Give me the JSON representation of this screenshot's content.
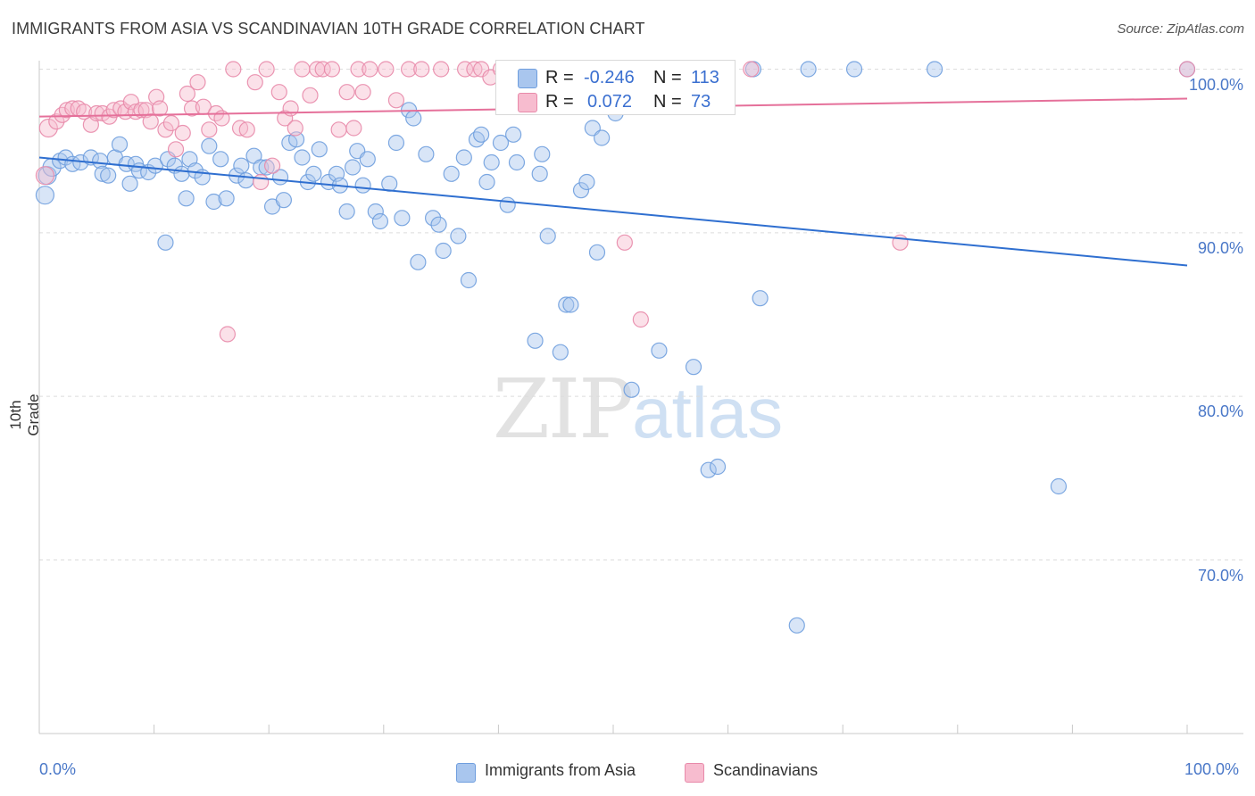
{
  "title": "IMMIGRANTS FROM ASIA VS SCANDINAVIAN 10TH GRADE CORRELATION CHART",
  "source": "Source: ZipAtlas.com",
  "watermark": {
    "part1": "ZIP",
    "part2": "atlas"
  },
  "legend": {
    "r_label": "R =",
    "n_label": "N =",
    "rows": [
      {
        "name": "Immigrants from Asia",
        "r": "-0.246",
        "n": "113",
        "color": "#a9c6ee",
        "stroke": "#6f9ede"
      },
      {
        "name": "Scandinavians",
        "r": "0.072",
        "n": "73",
        "color": "#f7bccf",
        "stroke": "#e88aaa"
      }
    ]
  },
  "chart_data": {
    "type": "scatter",
    "title": "IMMIGRANTS FROM ASIA VS SCANDINAVIAN 10TH GRADE CORRELATION CHART",
    "xlabel": "",
    "ylabel": "10th Grade",
    "xlim": [
      0,
      100
    ],
    "ylim": [
      59.5,
      101.5
    ],
    "x_tick_labels": [
      "0.0%",
      "100.0%"
    ],
    "y_ticks": [
      70,
      80,
      90,
      100
    ],
    "y_tick_labels": [
      "70.0%",
      "80.0%",
      "90.0%",
      "100.0%"
    ],
    "grid": "horizontal dashed",
    "legend_position": "top-center",
    "series": [
      {
        "name": "Immigrants from Asia",
        "color": "#6f9ede",
        "fill": "#a9c6ee",
        "trendline": {
          "x": [
            0,
            100
          ],
          "y": [
            94.6,
            88.0
          ]
        },
        "points": [
          [
            0.5,
            92.3
          ],
          [
            0.7,
            93.5
          ],
          [
            1.1,
            94.0
          ],
          [
            1.8,
            94.4
          ],
          [
            2.3,
            94.6
          ],
          [
            2.9,
            94.2
          ],
          [
            3.6,
            94.3
          ],
          [
            4.5,
            94.6
          ],
          [
            5.3,
            94.4
          ],
          [
            5.5,
            93.6
          ],
          [
            6.0,
            93.5
          ],
          [
            6.6,
            94.6
          ],
          [
            7.0,
            95.4
          ],
          [
            7.6,
            94.2
          ],
          [
            7.9,
            93.0
          ],
          [
            8.4,
            94.2
          ],
          [
            8.7,
            93.8
          ],
          [
            9.5,
            93.7
          ],
          [
            10.1,
            94.1
          ],
          [
            11.0,
            89.4
          ],
          [
            11.2,
            94.5
          ],
          [
            11.8,
            94.1
          ],
          [
            12.4,
            93.6
          ],
          [
            12.8,
            92.1
          ],
          [
            13.1,
            94.5
          ],
          [
            13.6,
            93.8
          ],
          [
            14.2,
            93.4
          ],
          [
            14.8,
            95.3
          ],
          [
            15.2,
            91.9
          ],
          [
            15.8,
            94.5
          ],
          [
            16.3,
            92.1
          ],
          [
            17.2,
            93.5
          ],
          [
            17.6,
            94.1
          ],
          [
            18.0,
            93.2
          ],
          [
            18.7,
            94.7
          ],
          [
            19.3,
            94.0
          ],
          [
            19.8,
            94.0
          ],
          [
            20.3,
            91.6
          ],
          [
            21.0,
            93.4
          ],
          [
            21.3,
            92.0
          ],
          [
            21.8,
            95.5
          ],
          [
            22.4,
            95.7
          ],
          [
            22.9,
            94.6
          ],
          [
            23.4,
            93.1
          ],
          [
            23.9,
            93.6
          ],
          [
            24.4,
            95.1
          ],
          [
            25.2,
            93.1
          ],
          [
            25.9,
            93.6
          ],
          [
            26.2,
            92.9
          ],
          [
            26.8,
            91.3
          ],
          [
            27.3,
            94.0
          ],
          [
            27.7,
            95.0
          ],
          [
            28.2,
            92.9
          ],
          [
            28.6,
            94.5
          ],
          [
            29.3,
            91.3
          ],
          [
            29.7,
            90.7
          ],
          [
            30.5,
            93.0
          ],
          [
            31.1,
            95.5
          ],
          [
            31.6,
            90.9
          ],
          [
            32.2,
            97.5
          ],
          [
            32.6,
            97.0
          ],
          [
            33.0,
            88.2
          ],
          [
            33.7,
            94.8
          ],
          [
            34.3,
            90.9
          ],
          [
            34.8,
            90.5
          ],
          [
            35.2,
            88.9
          ],
          [
            35.9,
            93.6
          ],
          [
            36.5,
            89.8
          ],
          [
            37.0,
            94.6
          ],
          [
            37.4,
            87.1
          ],
          [
            38.1,
            95.7
          ],
          [
            38.5,
            96.0
          ],
          [
            39.0,
            93.1
          ],
          [
            39.4,
            94.3
          ],
          [
            40.2,
            95.5
          ],
          [
            40.8,
            91.7
          ],
          [
            41.3,
            96.0
          ],
          [
            41.6,
            94.3
          ],
          [
            42.2,
            98.9
          ],
          [
            43.2,
            83.4
          ],
          [
            43.6,
            93.6
          ],
          [
            43.8,
            94.8
          ],
          [
            44.3,
            89.8
          ],
          [
            44.8,
            99.9
          ],
          [
            45.4,
            82.7
          ],
          [
            45.9,
            85.6
          ],
          [
            46.3,
            85.6
          ],
          [
            47.2,
            92.6
          ],
          [
            47.7,
            93.1
          ],
          [
            48.2,
            96.4
          ],
          [
            48.6,
            88.8
          ],
          [
            49.0,
            95.8
          ],
          [
            50.2,
            97.3
          ],
          [
            51.6,
            80.4
          ],
          [
            52.2,
            100.0
          ],
          [
            53.2,
            99.8
          ],
          [
            54.0,
            82.8
          ],
          [
            57.0,
            81.8
          ],
          [
            58.3,
            75.5
          ],
          [
            59.1,
            75.7
          ],
          [
            62.2,
            100.0
          ],
          [
            62.8,
            86.0
          ],
          [
            66.0,
            66.0
          ],
          [
            67.0,
            100.0
          ],
          [
            71.0,
            100.0
          ],
          [
            78.0,
            100.0
          ],
          [
            88.8,
            74.5
          ],
          [
            100.0,
            100.0
          ]
        ]
      },
      {
        "name": "Scandinavians",
        "color": "#e88aaa",
        "fill": "#f7bccf",
        "trendline": {
          "x": [
            0,
            100
          ],
          "y": [
            97.1,
            98.2
          ]
        },
        "points": [
          [
            0.5,
            93.5
          ],
          [
            0.8,
            96.4
          ],
          [
            1.5,
            96.8
          ],
          [
            2.0,
            97.2
          ],
          [
            2.4,
            97.5
          ],
          [
            2.9,
            97.6
          ],
          [
            3.4,
            97.6
          ],
          [
            3.9,
            97.4
          ],
          [
            4.5,
            96.6
          ],
          [
            5.0,
            97.3
          ],
          [
            5.5,
            97.3
          ],
          [
            6.1,
            97.1
          ],
          [
            6.5,
            97.5
          ],
          [
            7.1,
            97.6
          ],
          [
            7.5,
            97.4
          ],
          [
            8.0,
            98.0
          ],
          [
            8.4,
            97.4
          ],
          [
            8.9,
            97.5
          ],
          [
            9.3,
            97.5
          ],
          [
            9.7,
            96.8
          ],
          [
            10.2,
            98.3
          ],
          [
            10.5,
            97.6
          ],
          [
            11.0,
            96.3
          ],
          [
            11.5,
            96.7
          ],
          [
            11.9,
            95.1
          ],
          [
            12.5,
            96.1
          ],
          [
            12.9,
            98.5
          ],
          [
            13.3,
            97.6
          ],
          [
            13.8,
            99.2
          ],
          [
            14.3,
            97.7
          ],
          [
            14.8,
            96.3
          ],
          [
            15.4,
            97.3
          ],
          [
            15.9,
            97.0
          ],
          [
            16.4,
            83.8
          ],
          [
            16.9,
            100.0
          ],
          [
            17.5,
            96.4
          ],
          [
            18.1,
            96.3
          ],
          [
            18.8,
            99.2
          ],
          [
            19.3,
            93.1
          ],
          [
            19.8,
            100.0
          ],
          [
            20.3,
            94.1
          ],
          [
            20.9,
            98.6
          ],
          [
            21.4,
            97.0
          ],
          [
            21.9,
            97.6
          ],
          [
            22.3,
            96.4
          ],
          [
            22.9,
            100.0
          ],
          [
            23.6,
            98.4
          ],
          [
            24.2,
            100.0
          ],
          [
            24.7,
            100.0
          ],
          [
            25.5,
            100.0
          ],
          [
            26.1,
            96.3
          ],
          [
            26.8,
            98.6
          ],
          [
            27.4,
            96.4
          ],
          [
            27.8,
            100.0
          ],
          [
            28.2,
            98.6
          ],
          [
            28.8,
            100.0
          ],
          [
            30.2,
            100.0
          ],
          [
            31.1,
            98.1
          ],
          [
            32.2,
            100.0
          ],
          [
            33.3,
            100.0
          ],
          [
            35.0,
            100.0
          ],
          [
            37.1,
            100.0
          ],
          [
            37.9,
            100.0
          ],
          [
            38.5,
            100.0
          ],
          [
            39.3,
            99.5
          ],
          [
            40.2,
            100.0
          ],
          [
            46.0,
            100.0
          ],
          [
            47.0,
            100.0
          ],
          [
            51.0,
            89.4
          ],
          [
            52.4,
            84.7
          ],
          [
            62.0,
            100.0
          ],
          [
            75.0,
            89.4
          ],
          [
            100.0,
            100.0
          ]
        ]
      }
    ]
  }
}
